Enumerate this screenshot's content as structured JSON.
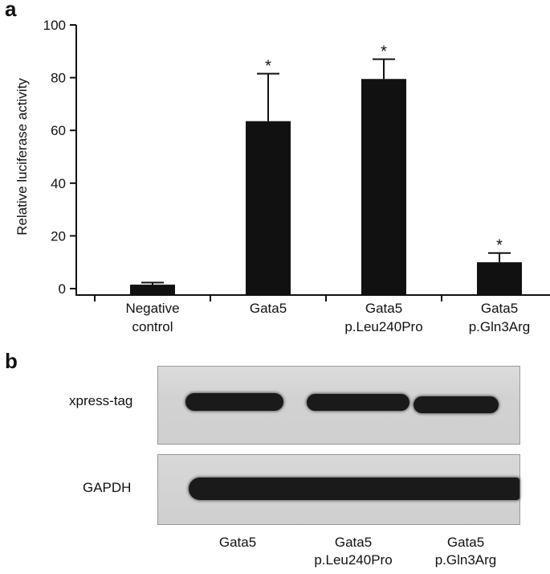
{
  "panel_a_letter": "a",
  "panel_b_letter": "b",
  "chart_data": {
    "type": "bar",
    "categories": [
      [
        "Negative",
        "control"
      ],
      [
        "Gata5"
      ],
      [
        "Gata5",
        "p.Leu240Pro"
      ],
      [
        "Gata5",
        "p.Gln3Arg"
      ]
    ],
    "values": [
      1.5,
      63.5,
      79.5,
      10
    ],
    "errors": [
      0.8,
      18,
      7.5,
      3.5
    ],
    "significance": [
      "",
      "*",
      "*",
      "*"
    ],
    "ylabel": "Relative luciferase activity",
    "xlabel": "",
    "ylim": [
      0,
      100
    ],
    "yticks": [
      0,
      20,
      40,
      60,
      80,
      100
    ],
    "bar_color": "#111111"
  },
  "blot": {
    "rows": [
      {
        "label": "xpress-tag"
      },
      {
        "label": "GAPDH"
      }
    ],
    "lanes": [
      {
        "line1": "Gata5",
        "line2": ""
      },
      {
        "line1": "Gata5",
        "line2": "p.Leu240Pro"
      },
      {
        "line1": "Gata5",
        "line2": "p.Gln3Arg"
      }
    ]
  }
}
